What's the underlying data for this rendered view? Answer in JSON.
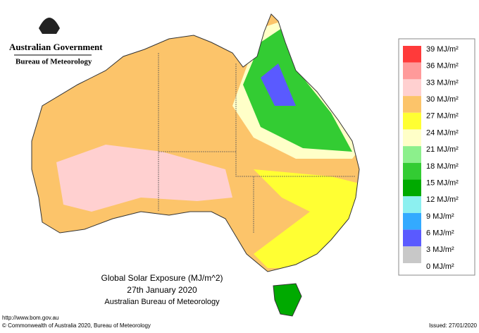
{
  "header": {
    "government": "Australian Government",
    "agency": "Bureau of Meteorology"
  },
  "title": {
    "line1": "Global Solar Exposure (MJ/m^2)",
    "line2": "27th January 2020",
    "line3": "Australian Bureau of Meteorology"
  },
  "footer": {
    "url": "http://www.bom.gov.au",
    "copyright": "© Commonwealth of Australia 2020, Bureau of Meteorology",
    "issued": "Issued: 27/01/2020"
  },
  "legend": {
    "labels": [
      "39 MJ/m²",
      "36 MJ/m²",
      "33 MJ/m²",
      "30 MJ/m²",
      "27 MJ/m²",
      "24 MJ/m²",
      "21 MJ/m²",
      "18 MJ/m²",
      "15 MJ/m²",
      "12 MJ/m²",
      "9 MJ/m²",
      "6 MJ/m²",
      "3 MJ/m²",
      "0 MJ/m²"
    ],
    "colors": [
      "#ff3a3a",
      "#ff9a9a",
      "#ffd0d0",
      "#fcc46a",
      "#ffff33",
      "#ffffc8",
      "#8cf08c",
      "#33cc33",
      "#00aa00",
      "#8cf0f0",
      "#33aaff",
      "#5a5aff",
      "#c8c8c8"
    ]
  }
}
